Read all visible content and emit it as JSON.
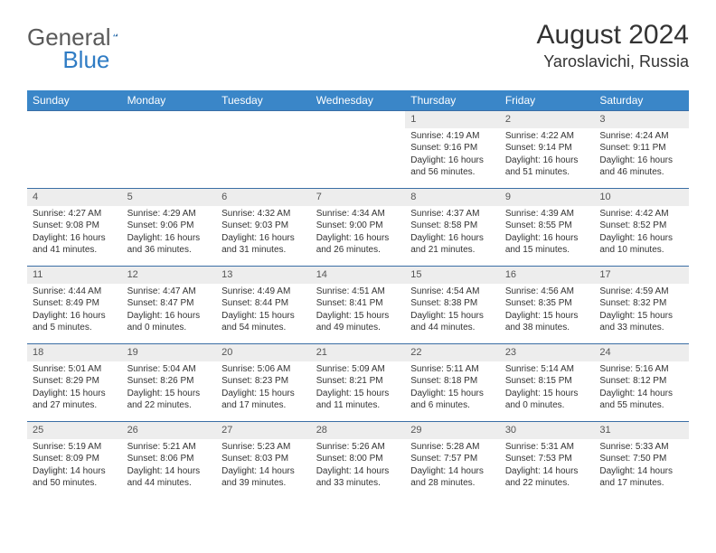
{
  "brand": {
    "word1": "General",
    "word2": "Blue"
  },
  "title": {
    "month_year": "August 2024",
    "location": "Yaroslavichi, Russia"
  },
  "colors": {
    "header_bg": "#3a86c8",
    "header_text": "#ffffff",
    "daynum_bg": "#ededed",
    "rule": "#3a6ea5",
    "text": "#333333",
    "brand_grey": "#5a5a5a",
    "brand_blue": "#2f7cc4"
  },
  "weekdays": [
    "Sunday",
    "Monday",
    "Tuesday",
    "Wednesday",
    "Thursday",
    "Friday",
    "Saturday"
  ],
  "weeks": [
    [
      null,
      null,
      null,
      null,
      {
        "n": "1",
        "sr": "Sunrise: 4:19 AM",
        "ss": "Sunset: 9:16 PM",
        "dl1": "Daylight: 16 hours",
        "dl2": "and 56 minutes."
      },
      {
        "n": "2",
        "sr": "Sunrise: 4:22 AM",
        "ss": "Sunset: 9:14 PM",
        "dl1": "Daylight: 16 hours",
        "dl2": "and 51 minutes."
      },
      {
        "n": "3",
        "sr": "Sunrise: 4:24 AM",
        "ss": "Sunset: 9:11 PM",
        "dl1": "Daylight: 16 hours",
        "dl2": "and 46 minutes."
      }
    ],
    [
      {
        "n": "4",
        "sr": "Sunrise: 4:27 AM",
        "ss": "Sunset: 9:08 PM",
        "dl1": "Daylight: 16 hours",
        "dl2": "and 41 minutes."
      },
      {
        "n": "5",
        "sr": "Sunrise: 4:29 AM",
        "ss": "Sunset: 9:06 PM",
        "dl1": "Daylight: 16 hours",
        "dl2": "and 36 minutes."
      },
      {
        "n": "6",
        "sr": "Sunrise: 4:32 AM",
        "ss": "Sunset: 9:03 PM",
        "dl1": "Daylight: 16 hours",
        "dl2": "and 31 minutes."
      },
      {
        "n": "7",
        "sr": "Sunrise: 4:34 AM",
        "ss": "Sunset: 9:00 PM",
        "dl1": "Daylight: 16 hours",
        "dl2": "and 26 minutes."
      },
      {
        "n": "8",
        "sr": "Sunrise: 4:37 AM",
        "ss": "Sunset: 8:58 PM",
        "dl1": "Daylight: 16 hours",
        "dl2": "and 21 minutes."
      },
      {
        "n": "9",
        "sr": "Sunrise: 4:39 AM",
        "ss": "Sunset: 8:55 PM",
        "dl1": "Daylight: 16 hours",
        "dl2": "and 15 minutes."
      },
      {
        "n": "10",
        "sr": "Sunrise: 4:42 AM",
        "ss": "Sunset: 8:52 PM",
        "dl1": "Daylight: 16 hours",
        "dl2": "and 10 minutes."
      }
    ],
    [
      {
        "n": "11",
        "sr": "Sunrise: 4:44 AM",
        "ss": "Sunset: 8:49 PM",
        "dl1": "Daylight: 16 hours",
        "dl2": "and 5 minutes."
      },
      {
        "n": "12",
        "sr": "Sunrise: 4:47 AM",
        "ss": "Sunset: 8:47 PM",
        "dl1": "Daylight: 16 hours",
        "dl2": "and 0 minutes."
      },
      {
        "n": "13",
        "sr": "Sunrise: 4:49 AM",
        "ss": "Sunset: 8:44 PM",
        "dl1": "Daylight: 15 hours",
        "dl2": "and 54 minutes."
      },
      {
        "n": "14",
        "sr": "Sunrise: 4:51 AM",
        "ss": "Sunset: 8:41 PM",
        "dl1": "Daylight: 15 hours",
        "dl2": "and 49 minutes."
      },
      {
        "n": "15",
        "sr": "Sunrise: 4:54 AM",
        "ss": "Sunset: 8:38 PM",
        "dl1": "Daylight: 15 hours",
        "dl2": "and 44 minutes."
      },
      {
        "n": "16",
        "sr": "Sunrise: 4:56 AM",
        "ss": "Sunset: 8:35 PM",
        "dl1": "Daylight: 15 hours",
        "dl2": "and 38 minutes."
      },
      {
        "n": "17",
        "sr": "Sunrise: 4:59 AM",
        "ss": "Sunset: 8:32 PM",
        "dl1": "Daylight: 15 hours",
        "dl2": "and 33 minutes."
      }
    ],
    [
      {
        "n": "18",
        "sr": "Sunrise: 5:01 AM",
        "ss": "Sunset: 8:29 PM",
        "dl1": "Daylight: 15 hours",
        "dl2": "and 27 minutes."
      },
      {
        "n": "19",
        "sr": "Sunrise: 5:04 AM",
        "ss": "Sunset: 8:26 PM",
        "dl1": "Daylight: 15 hours",
        "dl2": "and 22 minutes."
      },
      {
        "n": "20",
        "sr": "Sunrise: 5:06 AM",
        "ss": "Sunset: 8:23 PM",
        "dl1": "Daylight: 15 hours",
        "dl2": "and 17 minutes."
      },
      {
        "n": "21",
        "sr": "Sunrise: 5:09 AM",
        "ss": "Sunset: 8:21 PM",
        "dl1": "Daylight: 15 hours",
        "dl2": "and 11 minutes."
      },
      {
        "n": "22",
        "sr": "Sunrise: 5:11 AM",
        "ss": "Sunset: 8:18 PM",
        "dl1": "Daylight: 15 hours",
        "dl2": "and 6 minutes."
      },
      {
        "n": "23",
        "sr": "Sunrise: 5:14 AM",
        "ss": "Sunset: 8:15 PM",
        "dl1": "Daylight: 15 hours",
        "dl2": "and 0 minutes."
      },
      {
        "n": "24",
        "sr": "Sunrise: 5:16 AM",
        "ss": "Sunset: 8:12 PM",
        "dl1": "Daylight: 14 hours",
        "dl2": "and 55 minutes."
      }
    ],
    [
      {
        "n": "25",
        "sr": "Sunrise: 5:19 AM",
        "ss": "Sunset: 8:09 PM",
        "dl1": "Daylight: 14 hours",
        "dl2": "and 50 minutes."
      },
      {
        "n": "26",
        "sr": "Sunrise: 5:21 AM",
        "ss": "Sunset: 8:06 PM",
        "dl1": "Daylight: 14 hours",
        "dl2": "and 44 minutes."
      },
      {
        "n": "27",
        "sr": "Sunrise: 5:23 AM",
        "ss": "Sunset: 8:03 PM",
        "dl1": "Daylight: 14 hours",
        "dl2": "and 39 minutes."
      },
      {
        "n": "28",
        "sr": "Sunrise: 5:26 AM",
        "ss": "Sunset: 8:00 PM",
        "dl1": "Daylight: 14 hours",
        "dl2": "and 33 minutes."
      },
      {
        "n": "29",
        "sr": "Sunrise: 5:28 AM",
        "ss": "Sunset: 7:57 PM",
        "dl1": "Daylight: 14 hours",
        "dl2": "and 28 minutes."
      },
      {
        "n": "30",
        "sr": "Sunrise: 5:31 AM",
        "ss": "Sunset: 7:53 PM",
        "dl1": "Daylight: 14 hours",
        "dl2": "and 22 minutes."
      },
      {
        "n": "31",
        "sr": "Sunrise: 5:33 AM",
        "ss": "Sunset: 7:50 PM",
        "dl1": "Daylight: 14 hours",
        "dl2": "and 17 minutes."
      }
    ]
  ]
}
